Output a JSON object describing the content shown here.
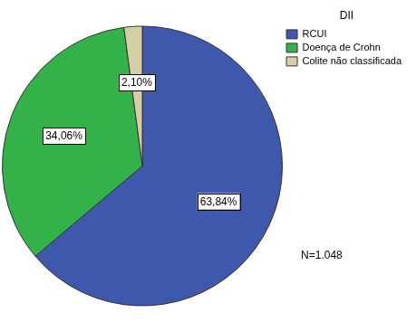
{
  "chart_data": {
    "type": "pie",
    "legend_title": "DII",
    "categories": [
      "RCUI",
      "Doença de Crohn",
      "Colite não classificada"
    ],
    "values": [
      63.84,
      34.06,
      2.1
    ],
    "value_labels": [
      "63,84%",
      "34,06%",
      "2,10%"
    ],
    "colors": [
      "#3e58ac",
      "#33b24a",
      "#d6cea4"
    ],
    "data_labels": true,
    "legend": "upper right",
    "annotations": [
      "N=1.048"
    ]
  }
}
